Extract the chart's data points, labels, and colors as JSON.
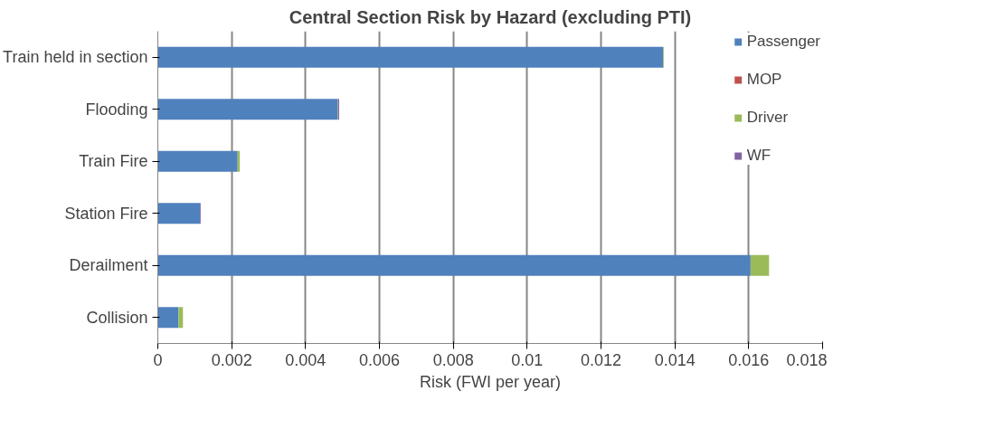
{
  "chart_data": {
    "type": "bar",
    "orientation": "horizontal",
    "stacked": true,
    "title": "Central Section Risk by Hazard (excluding PTI)",
    "xlabel": "Risk (FWI per year)",
    "categories": [
      "Train held in section",
      "Flooding",
      "Train Fire",
      "Station Fire",
      "Derailment",
      "Collision"
    ],
    "series": [
      {
        "name": "Passenger",
        "color": "#4f81bd",
        "values": [
          0.01368,
          0.00487,
          0.00216,
          0.00114,
          0.01605,
          0.00056
        ]
      },
      {
        "name": "MOP",
        "color": "#c0504d",
        "values": [
          0,
          0,
          0,
          0,
          0,
          0
        ]
      },
      {
        "name": "Driver",
        "color": "#9bbb59",
        "values": [
          2e-05,
          1e-05,
          6e-05,
          0,
          0.0005,
          0.00012
        ]
      },
      {
        "name": "WF",
        "color": "#8064a2",
        "values": [
          0,
          3e-05,
          0,
          2e-05,
          0,
          0
        ]
      }
    ],
    "xlim": [
      0,
      0.018
    ],
    "xticks": [
      0,
      0.002,
      0.004,
      0.006,
      0.008,
      0.01,
      0.012,
      0.014,
      0.016,
      0.018
    ],
    "grid": "x",
    "legend": "top right"
  }
}
